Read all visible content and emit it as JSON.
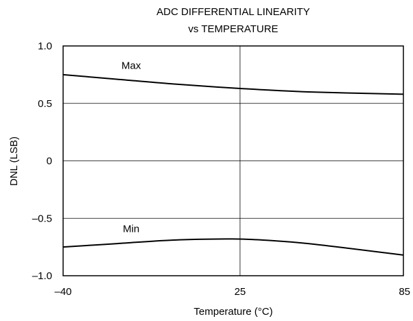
{
  "chart_data": {
    "type": "line",
    "title": "ADC DIFFERENTIAL LINEARITY",
    "subtitle": "vs TEMPERATURE",
    "xlabel": "Temperature (°C)",
    "ylabel": "DNL (LSB)",
    "xlim": [
      -40,
      85
    ],
    "ylim": [
      -1.0,
      1.0
    ],
    "x_ticks": [
      -40,
      25,
      85
    ],
    "x_tick_labels": [
      "–40",
      "25",
      "85"
    ],
    "y_ticks": [
      1.0,
      0.5,
      0,
      -0.5,
      -1.0
    ],
    "y_tick_labels": [
      "1.0",
      "0.5",
      "0",
      "–0.5",
      "–1.0"
    ],
    "grid": true,
    "series": [
      {
        "name": "Max",
        "x": [
          -40,
          -20,
          0,
          25,
          50,
          85
        ],
        "y": [
          0.75,
          0.71,
          0.67,
          0.63,
          0.6,
          0.58
        ]
      },
      {
        "name": "Min",
        "x": [
          -40,
          -20,
          0,
          20,
          30,
          50,
          85
        ],
        "y": [
          -0.75,
          -0.72,
          -0.69,
          -0.68,
          -0.685,
          -0.72,
          -0.82
        ]
      }
    ]
  },
  "colors": {
    "axis": "#000000",
    "grid": "#000000",
    "line": "#000000"
  }
}
